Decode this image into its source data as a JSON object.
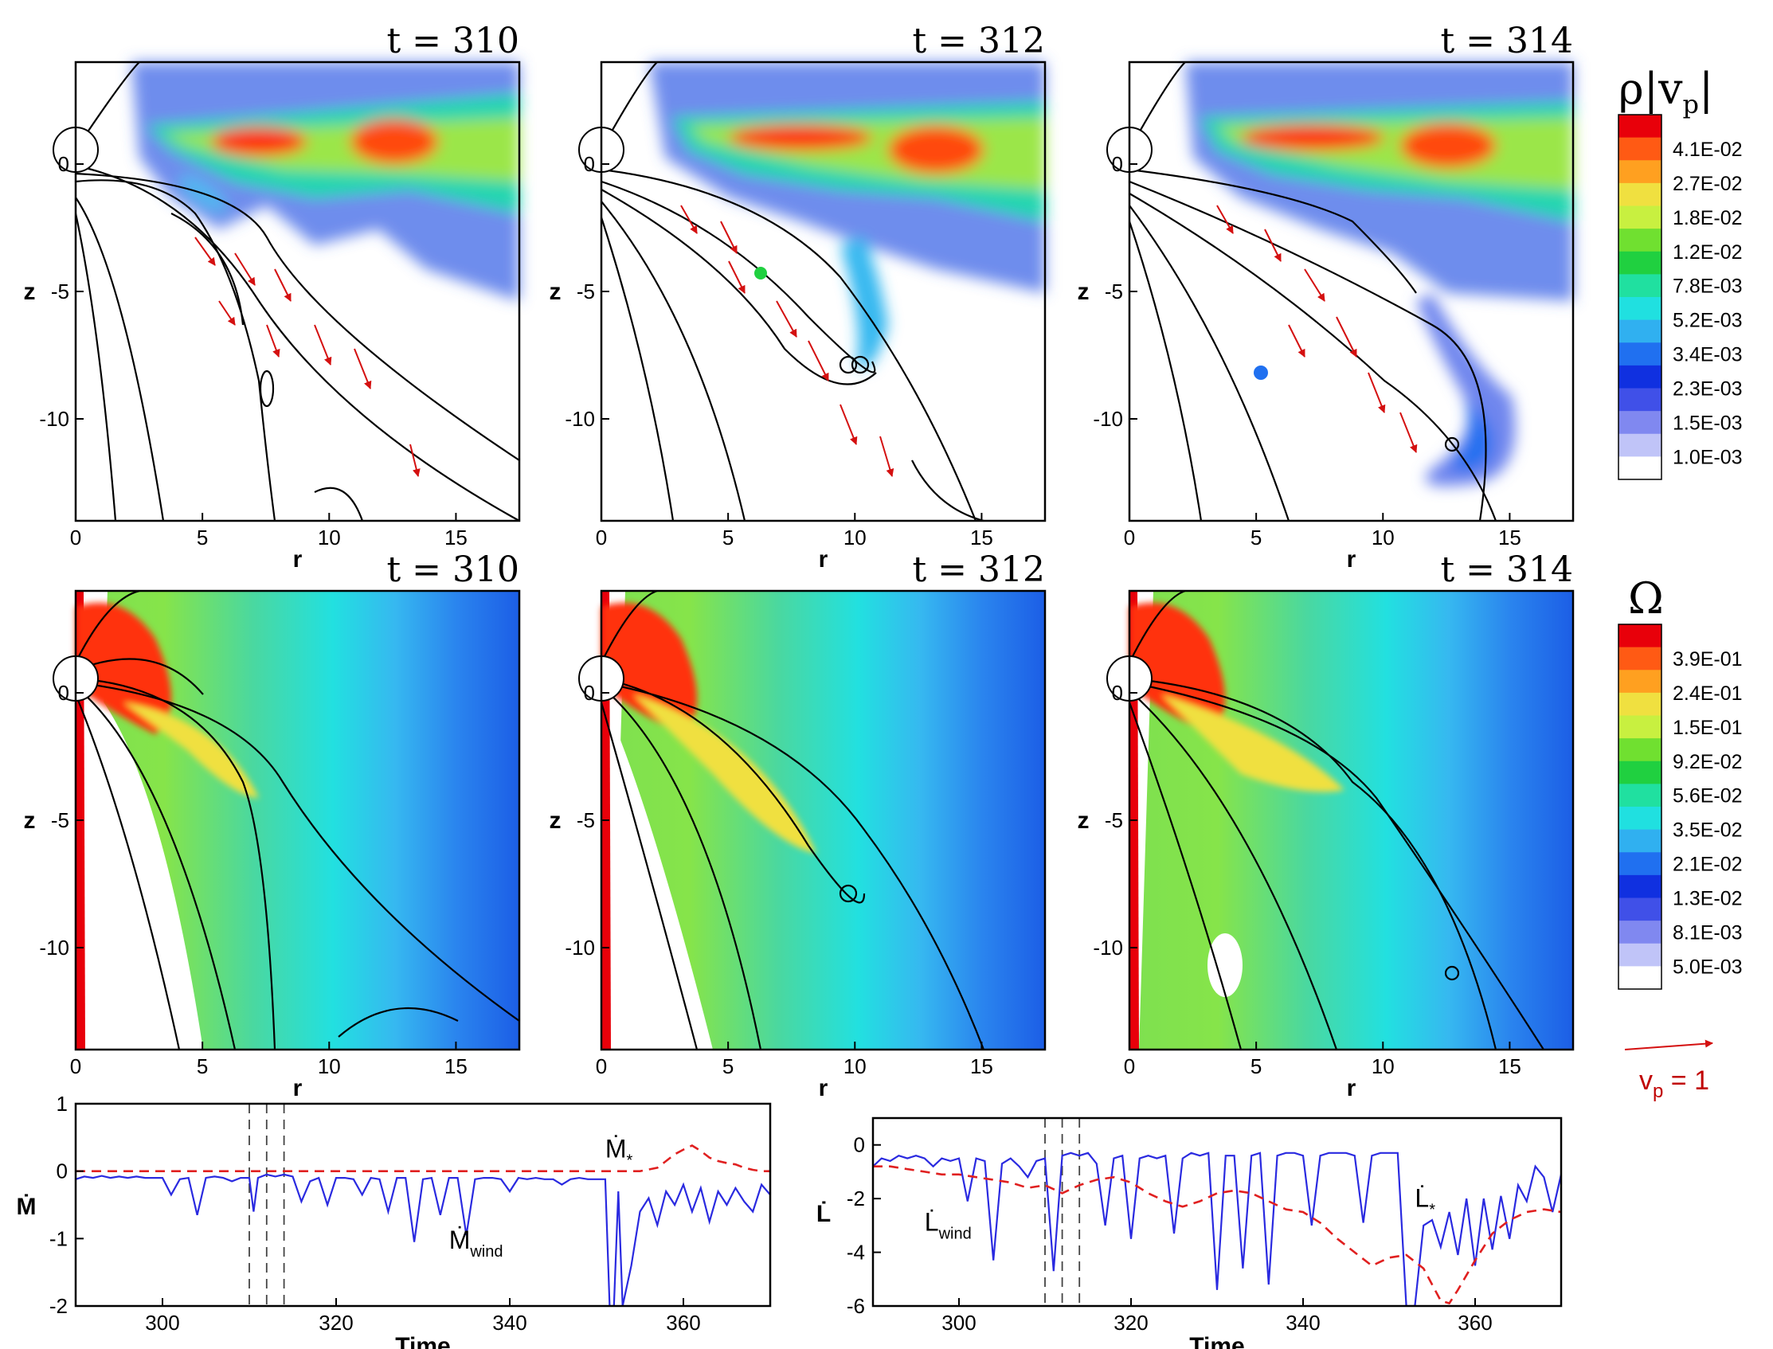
{
  "panels": [
    {
      "title": "t = 310",
      "row": "density"
    },
    {
      "title": "t = 312",
      "row": "density"
    },
    {
      "title": "t = 314",
      "row": "density"
    },
    {
      "title": "t = 310",
      "row": "omega"
    },
    {
      "title": "t = 312",
      "row": "omega"
    },
    {
      "title": "t = 314",
      "row": "omega"
    }
  ],
  "axes": {
    "x_label": "r",
    "z_label": "z",
    "x_ticks": [
      "0",
      "5",
      "10",
      "15"
    ],
    "z_ticks": [
      "0",
      "-5",
      "-10"
    ],
    "r_range": [
      0,
      17.5
    ],
    "z_range": [
      -14,
      4
    ]
  },
  "colorbar_density": {
    "title": "ρ|v",
    "title_sub": "p",
    "title_close": "|",
    "labels": [
      "4.1E-02",
      "2.7E-02",
      "1.8E-02",
      "1.2E-02",
      "7.8E-03",
      "5.2E-03",
      "3.4E-03",
      "2.3E-03",
      "1.5E-03",
      "1.0E-03"
    ],
    "colors": [
      "#e8000a",
      "#ff5a14",
      "#ffa020",
      "#f0e040",
      "#c8f040",
      "#70e030",
      "#20d040",
      "#20e0a0",
      "#20e0e0",
      "#30b0f0",
      "#2070f0",
      "#1030e0",
      "#4050e8",
      "#8088f0",
      "#c0c4f8",
      "#ffffff"
    ]
  },
  "colorbar_omega": {
    "title": "Ω",
    "labels": [
      "3.9E-01",
      "2.4E-01",
      "1.5E-01",
      "9.2E-02",
      "5.6E-02",
      "3.5E-02",
      "2.1E-02",
      "1.3E-02",
      "8.1E-03",
      "5.0E-03"
    ],
    "colors": [
      "#e8000a",
      "#ff5a14",
      "#ffa020",
      "#f0e040",
      "#c8f040",
      "#70e030",
      "#20d040",
      "#20e0a0",
      "#20e0e0",
      "#30b0f0",
      "#2070f0",
      "#1030e0",
      "#4050e8",
      "#8088f0",
      "#c0c4f8",
      "#ffffff"
    ]
  },
  "velocity_reference": {
    "label": "v",
    "sub": "p",
    "value": " = 1"
  },
  "chart_data": [
    {
      "type": "line",
      "xlabel": "Time",
      "ylabel": "Ṁ",
      "xlim": [
        290,
        370
      ],
      "ylim": [
        -2,
        1
      ],
      "x_ticks": [
        "300",
        "320",
        "340",
        "360"
      ],
      "y_ticks": [
        "1",
        "0",
        "-1",
        "-2"
      ],
      "vertical_markers": [
        310,
        312,
        314
      ],
      "annotations": [
        {
          "text": "Ṁ",
          "sub": "*",
          "x": 351,
          "y": 0.2
        },
        {
          "text": "Ṁ",
          "sub": "wind",
          "x": 333,
          "y": -1.15
        }
      ],
      "series": [
        {
          "color": "#2a2ae0",
          "style": "solid",
          "x": [
            290,
            291,
            292,
            293,
            294,
            295,
            296,
            297,
            298,
            299,
            300,
            301,
            302,
            303,
            304,
            305,
            306,
            307,
            308,
            309,
            310,
            310.5,
            311,
            312,
            313,
            314,
            315,
            316,
            317,
            318,
            319,
            320,
            321,
            322,
            323,
            324,
            325,
            326,
            327,
            328,
            329,
            330,
            331,
            332,
            333,
            334,
            335,
            336,
            337,
            338,
            339,
            340,
            341,
            342,
            343,
            344,
            345,
            346,
            347,
            348,
            349,
            350,
            351,
            351.5,
            352,
            352.5,
            353,
            354,
            355,
            356,
            357,
            358,
            359,
            360,
            361,
            362,
            363,
            364,
            365,
            366,
            367,
            368,
            369,
            370
          ],
          "y": [
            -0.12,
            -0.08,
            -0.1,
            -0.07,
            -0.1,
            -0.08,
            -0.1,
            -0.08,
            -0.1,
            -0.1,
            -0.1,
            -0.35,
            -0.12,
            -0.1,
            -0.65,
            -0.1,
            -0.08,
            -0.1,
            -0.15,
            -0.1,
            -0.1,
            -0.6,
            -0.1,
            -0.05,
            -0.08,
            -0.05,
            -0.08,
            -0.45,
            -0.15,
            -0.1,
            -0.5,
            -0.1,
            -0.1,
            -0.12,
            -0.35,
            -0.1,
            -0.12,
            -0.6,
            -0.1,
            -0.1,
            -1.05,
            -0.12,
            -0.1,
            -0.65,
            -0.1,
            -0.1,
            -0.95,
            -0.12,
            -0.1,
            -0.1,
            -0.12,
            -0.3,
            -0.1,
            -0.12,
            -0.1,
            -0.12,
            -0.12,
            -0.2,
            -0.12,
            -0.1,
            -0.12,
            -0.12,
            -0.12,
            -2.0,
            -2.0,
            -0.3,
            -2.0,
            -1.4,
            -0.6,
            -0.4,
            -0.8,
            -0.3,
            -0.5,
            -0.2,
            -0.6,
            -0.25,
            -0.75,
            -0.3,
            -0.5,
            -0.25,
            -0.45,
            -0.6,
            -0.2,
            -0.35
          ]
        },
        {
          "color": "#e02020",
          "style": "dashed",
          "x": [
            290,
            300,
            310,
            320,
            330,
            340,
            350,
            355,
            357,
            358,
            359,
            360,
            361,
            362,
            363,
            364,
            365,
            366,
            367,
            368,
            369,
            370
          ],
          "y": [
            0,
            0,
            0,
            0,
            0,
            0,
            0,
            0,
            0.05,
            0.15,
            0.25,
            0.32,
            0.38,
            0.3,
            0.2,
            0.15,
            0.12,
            0.1,
            0.05,
            0.02,
            0,
            0
          ]
        }
      ]
    },
    {
      "type": "line",
      "xlabel": "Time",
      "ylabel": "L̇",
      "xlim": [
        290,
        370
      ],
      "ylim": [
        -6,
        1
      ],
      "x_ticks": [
        "300",
        "320",
        "340",
        "360"
      ],
      "y_ticks": [
        "0",
        "-2",
        "-4",
        "-6"
      ],
      "vertical_markers": [
        310,
        312,
        314
      ],
      "annotations": [
        {
          "text": "L̇",
          "sub": "*",
          "x": 353,
          "y": -2.3
        },
        {
          "text": "L̇",
          "sub": "wind",
          "x": 296,
          "y": -3.2
        }
      ],
      "series": [
        {
          "color": "#2a2ae0",
          "style": "solid",
          "x": [
            290,
            291,
            292,
            293,
            294,
            295,
            296,
            297,
            298,
            299,
            300,
            301,
            302,
            303,
            304,
            305,
            306,
            307,
            308,
            309,
            310,
            311,
            312,
            313,
            314,
            315,
            316,
            317,
            318,
            319,
            320,
            321,
            322,
            323,
            324,
            325,
            326,
            327,
            328,
            329,
            330,
            331,
            332,
            333,
            334,
            335,
            336,
            337,
            338,
            339,
            340,
            341,
            342,
            343,
            344,
            345,
            346,
            347,
            348,
            349,
            350,
            351,
            352,
            353,
            354,
            355,
            356,
            357,
            358,
            359,
            360,
            361,
            362,
            363,
            364,
            365,
            366,
            367,
            368,
            369,
            370
          ],
          "y": [
            -0.8,
            -0.5,
            -0.6,
            -0.4,
            -0.5,
            -0.4,
            -0.5,
            -0.8,
            -0.5,
            -0.6,
            -0.5,
            -2.1,
            -0.5,
            -0.6,
            -4.3,
            -0.7,
            -0.5,
            -0.8,
            -1.2,
            -0.6,
            -0.5,
            -4.7,
            -0.4,
            -0.3,
            -0.4,
            -0.3,
            -0.7,
            -3.0,
            -0.5,
            -0.4,
            -3.5,
            -0.5,
            -0.4,
            -0.5,
            -0.4,
            -3.3,
            -0.5,
            -0.3,
            -0.4,
            -0.3,
            -5.4,
            -0.4,
            -0.4,
            -4.6,
            -0.4,
            -0.3,
            -5.2,
            -0.4,
            -0.3,
            -0.3,
            -0.4,
            -3.0,
            -0.4,
            -0.3,
            -0.3,
            -0.3,
            -0.4,
            -2.9,
            -0.4,
            -0.3,
            -0.3,
            -0.3,
            -6.0,
            -6.0,
            -3.0,
            -2.8,
            -3.8,
            -2.5,
            -4.1,
            -2.0,
            -4.5,
            -2.0,
            -3.9,
            -1.9,
            -3.5,
            -1.5,
            -2.1,
            -0.8,
            -1.2,
            -2.5,
            -1.1
          ]
        },
        {
          "color": "#e02020",
          "style": "dashed",
          "x": [
            290,
            292,
            294,
            296,
            298,
            300,
            302,
            304,
            306,
            308,
            310,
            312,
            314,
            316,
            318,
            320,
            322,
            324,
            326,
            328,
            330,
            332,
            334,
            336,
            338,
            340,
            342,
            344,
            346,
            348,
            350,
            352,
            354,
            355,
            356,
            357,
            358,
            360,
            362,
            364,
            366,
            368,
            370
          ],
          "y": [
            -0.8,
            -0.8,
            -0.9,
            -1.0,
            -1.1,
            -1.1,
            -1.2,
            -1.3,
            -1.4,
            -1.6,
            -1.5,
            -1.8,
            -1.5,
            -1.3,
            -1.2,
            -1.4,
            -1.8,
            -2.1,
            -2.3,
            -2.1,
            -1.8,
            -1.7,
            -1.8,
            -2.1,
            -2.4,
            -2.5,
            -2.9,
            -3.5,
            -4.0,
            -4.5,
            -4.2,
            -4.1,
            -4.6,
            -5.2,
            -5.8,
            -5.9,
            -5.4,
            -4.3,
            -3.3,
            -2.8,
            -2.5,
            -2.4,
            -2.5
          ]
        }
      ]
    }
  ]
}
